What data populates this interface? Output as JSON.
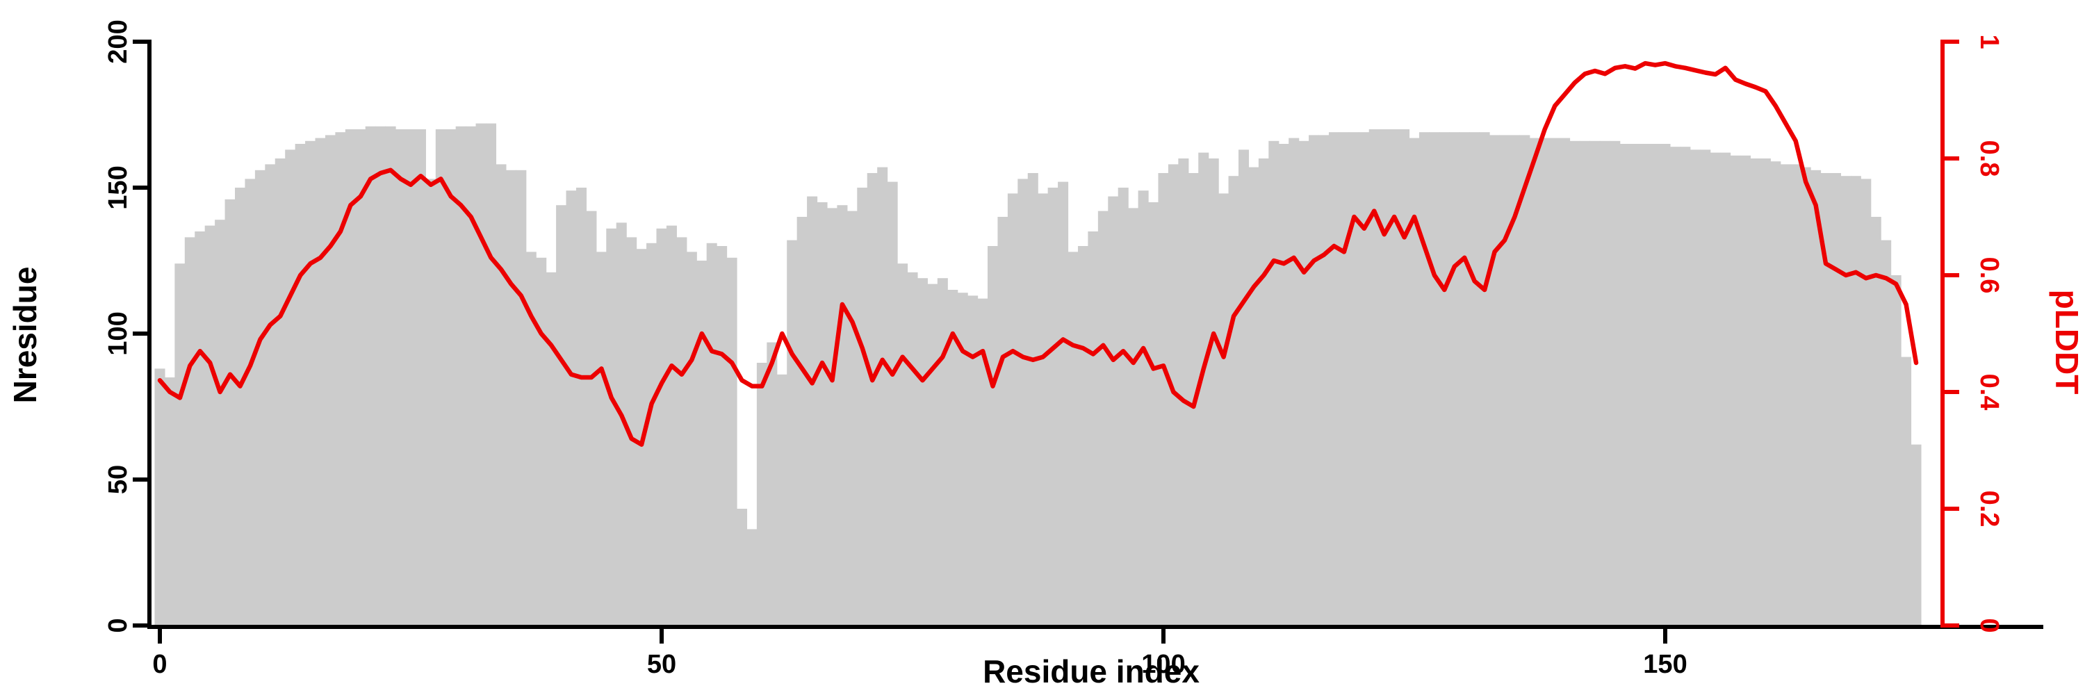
{
  "figure": {
    "title": "",
    "xlabel": "Residue index",
    "ylabel_left": "Nresidue",
    "ylabel_right": "pLDDT"
  },
  "colors": {
    "bar": "#cccccc",
    "line": "#ec0000",
    "left_axis": "#000000",
    "right_axis": "#ec0000",
    "background": "#ffffff"
  },
  "chart_data": {
    "type": "bar",
    "subtype": "dual-axis bar+line (MSA depth / per-residue confidence profile)",
    "title": "",
    "xlabel": "Residue index",
    "ylabel": "Nresidue",
    "ylabel_right": "pLDDT",
    "x_note": "x = residue index; one bar (Nresidue, left axis) and one line point (pLDDT, right axis) per residue, starting at 0",
    "xlim": [
      0,
      176
    ],
    "ylim_left": [
      0,
      200
    ],
    "ylim_right": [
      0,
      1
    ],
    "x_ticks": [
      0,
      50,
      100,
      150
    ],
    "y_ticks_left": [
      0,
      50,
      100,
      150,
      200
    ],
    "y_ticks_right_values": [
      0,
      0.2,
      0.4,
      0.6,
      0.8,
      1
    ],
    "y_ticks_right_labels": [
      "0",
      "0.2",
      "0.4",
      "0.6",
      "0.8",
      "1"
    ],
    "grid": false,
    "legend": "none",
    "series": [
      {
        "name": "Nresidue",
        "type": "bar",
        "axis": "left",
        "values": [
          88,
          85,
          124,
          133,
          135,
          137,
          139,
          146,
          150,
          153,
          156,
          158,
          160,
          163,
          165,
          166,
          167,
          168,
          169,
          170,
          170,
          171,
          171,
          171,
          170,
          170,
          170,
          153,
          170,
          170,
          171,
          171,
          172,
          172,
          158,
          156,
          156,
          128,
          126,
          121,
          144,
          149,
          150,
          142,
          128,
          136,
          138,
          133,
          129,
          131,
          136,
          137,
          133,
          128,
          125,
          131,
          130,
          126,
          40,
          33,
          90,
          97,
          86,
          132,
          140,
          147,
          145,
          143,
          144,
          142,
          150,
          155,
          157,
          152,
          124,
          121,
          119,
          117,
          119,
          115,
          114,
          113,
          112,
          130,
          140,
          148,
          153,
          155,
          148,
          150,
          152,
          128,
          130,
          135,
          142,
          147,
          150,
          143,
          149,
          145,
          155,
          158,
          160,
          155,
          162,
          160,
          148,
          154,
          163,
          157,
          160,
          166,
          165,
          167,
          166,
          168,
          168,
          169,
          169,
          169,
          169,
          170,
          170,
          170,
          170,
          167,
          169,
          169,
          169,
          169,
          169,
          169,
          169,
          168,
          168,
          168,
          168,
          167,
          167,
          167,
          167,
          166,
          166,
          166,
          166,
          166,
          165,
          165,
          165,
          165,
          165,
          164,
          164,
          163,
          163,
          162,
          162,
          161,
          161,
          160,
          160,
          159,
          158,
          158,
          157,
          156,
          155,
          155,
          154,
          154,
          153,
          140,
          132,
          120,
          92,
          62
        ]
      },
      {
        "name": "pLDDT",
        "type": "line",
        "axis": "right",
        "values": [
          0.42,
          0.4,
          0.39,
          0.445,
          0.47,
          0.45,
          0.4,
          0.43,
          0.41,
          0.445,
          0.49,
          0.515,
          0.53,
          0.565,
          0.6,
          0.62,
          0.63,
          0.65,
          0.675,
          0.72,
          0.735,
          0.765,
          0.775,
          0.78,
          0.765,
          0.755,
          0.77,
          0.755,
          0.765,
          0.735,
          0.72,
          0.7,
          0.665,
          0.63,
          0.61,
          0.585,
          0.565,
          0.53,
          0.5,
          0.48,
          0.455,
          0.43,
          0.425,
          0.425,
          0.44,
          0.39,
          0.36,
          0.32,
          0.31,
          0.38,
          0.415,
          0.445,
          0.43,
          0.455,
          0.5,
          0.47,
          0.465,
          0.45,
          0.42,
          0.41,
          0.41,
          0.45,
          0.5,
          0.465,
          0.44,
          0.415,
          0.45,
          0.42,
          0.55,
          0.52,
          0.475,
          0.42,
          0.455,
          0.43,
          0.46,
          0.44,
          0.42,
          0.44,
          0.46,
          0.5,
          0.47,
          0.46,
          0.47,
          0.41,
          0.46,
          0.47,
          0.46,
          0.455,
          0.46,
          0.475,
          0.49,
          0.48,
          0.475,
          0.465,
          0.48,
          0.455,
          0.47,
          0.45,
          0.475,
          0.44,
          0.445,
          0.4,
          0.385,
          0.375,
          0.44,
          0.5,
          0.46,
          0.53,
          0.555,
          0.58,
          0.6,
          0.625,
          0.62,
          0.63,
          0.605,
          0.625,
          0.635,
          0.65,
          0.64,
          0.7,
          0.68,
          0.71,
          0.67,
          0.7,
          0.665,
          0.7,
          0.65,
          0.6,
          0.575,
          0.615,
          0.63,
          0.59,
          0.575,
          0.64,
          0.66,
          0.7,
          0.75,
          0.8,
          0.85,
          0.89,
          0.91,
          0.93,
          0.945,
          0.95,
          0.945,
          0.955,
          0.958,
          0.954,
          0.963,
          0.96,
          0.963,
          0.958,
          0.955,
          0.951,
          0.947,
          0.944,
          0.955,
          0.935,
          0.928,
          0.922,
          0.915,
          0.89,
          0.86,
          0.83,
          0.76,
          0.72,
          0.62,
          0.61,
          0.6,
          0.605,
          0.595,
          0.6,
          0.595,
          0.585,
          0.55,
          0.45
        ]
      }
    ]
  }
}
